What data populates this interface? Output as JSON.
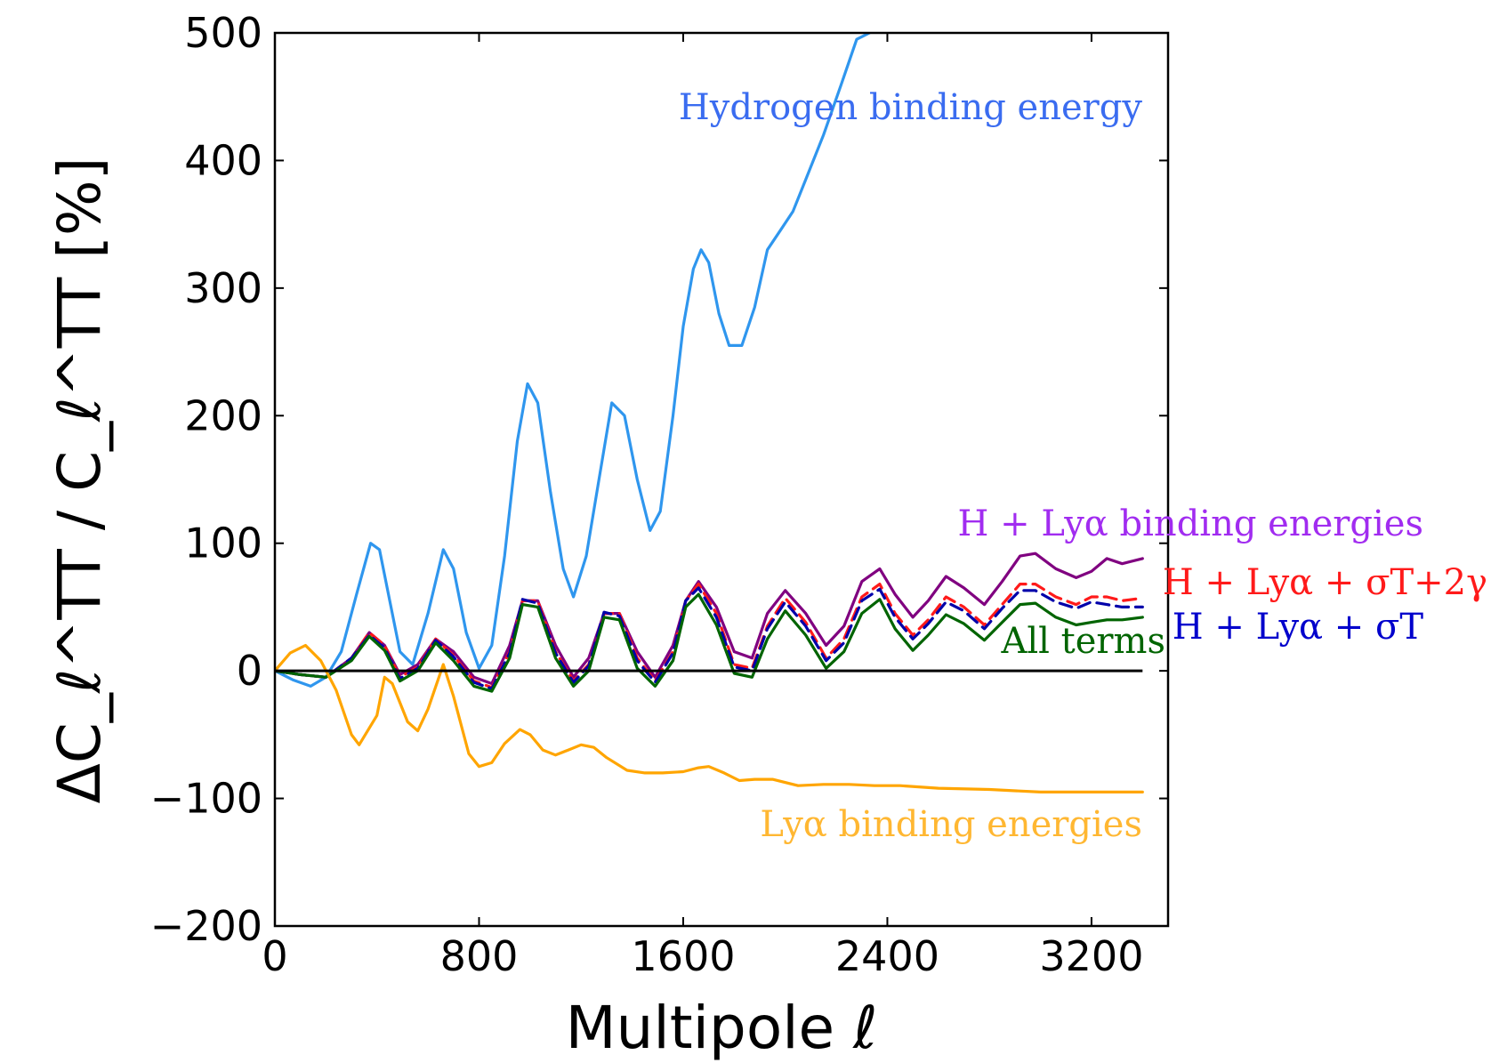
{
  "chart_data": {
    "type": "line",
    "title": "",
    "xlabel": "Multipole ℓ",
    "ylabel": "ΔC_ℓ^TT / C_ℓ^TT [%]",
    "xlim": [
      0,
      3500
    ],
    "ylim": [
      -200,
      500
    ],
    "xticks": [
      0,
      800,
      1600,
      2400,
      3200
    ],
    "xtick_labels": [
      "0",
      "800",
      "1600",
      "2400",
      "3200"
    ],
    "yticks": [
      -200,
      -100,
      0,
      100,
      200,
      300,
      400,
      500
    ],
    "ytick_labels": [
      "−200",
      "−100",
      "0",
      "100",
      "200",
      "300",
      "400",
      "500"
    ],
    "grid": false,
    "series": [
      {
        "name": "Hydrogen binding energy",
        "color": "#2f96ee",
        "dash": "solid",
        "x": [
          0,
          70,
          140,
          200,
          260,
          320,
          375,
          410,
          450,
          490,
          540,
          600,
          660,
          700,
          750,
          800,
          850,
          900,
          950,
          990,
          1030,
          1080,
          1130,
          1170,
          1220,
          1270,
          1320,
          1370,
          1420,
          1470,
          1510,
          1560,
          1600,
          1640,
          1670,
          1700,
          1740,
          1780,
          1830,
          1880,
          1930,
          1980,
          2030,
          2080,
          2150,
          2220,
          2280,
          2330
        ],
        "y": [
          0,
          -7,
          -12,
          -5,
          15,
          60,
          100,
          95,
          55,
          15,
          5,
          45,
          95,
          80,
          30,
          2,
          20,
          90,
          180,
          225,
          210,
          140,
          80,
          58,
          90,
          150,
          210,
          200,
          150,
          110,
          125,
          200,
          270,
          315,
          330,
          320,
          280,
          255,
          255,
          285,
          330,
          345,
          360,
          385,
          420,
          460,
          495,
          500
        ]
      },
      {
        "name": "H + Lyα binding energies",
        "color": "#800080",
        "dash": "solid",
        "x": [
          0,
          100,
          200,
          300,
          370,
          430,
          490,
          560,
          630,
          700,
          780,
          850,
          920,
          970,
          1030,
          1100,
          1170,
          1230,
          1290,
          1350,
          1420,
          1490,
          1560,
          1610,
          1660,
          1730,
          1800,
          1870,
          1930,
          2000,
          2080,
          2160,
          2230,
          2300,
          2370,
          2430,
          2500,
          2560,
          2630,
          2700,
          2780,
          2850,
          2920,
          2980,
          3060,
          3140,
          3200,
          3260,
          3320,
          3400
        ],
        "y": [
          0,
          -3,
          -5,
          10,
          30,
          20,
          -3,
          5,
          25,
          15,
          -5,
          -10,
          20,
          55,
          55,
          20,
          -5,
          10,
          45,
          45,
          15,
          -5,
          20,
          55,
          70,
          50,
          15,
          10,
          45,
          63,
          45,
          20,
          35,
          70,
          80,
          60,
          42,
          55,
          74,
          65,
          52,
          70,
          90,
          92,
          80,
          73,
          78,
          88,
          84,
          88
        ]
      },
      {
        "name": "H + Lyα + σT+2γ",
        "color": "#ff1a1a",
        "dash": "dashed",
        "x": [
          0,
          100,
          200,
          300,
          370,
          430,
          490,
          560,
          630,
          700,
          780,
          850,
          920,
          970,
          1030,
          1100,
          1170,
          1230,
          1290,
          1350,
          1420,
          1490,
          1560,
          1610,
          1660,
          1730,
          1800,
          1870,
          1930,
          2000,
          2080,
          2160,
          2230,
          2300,
          2370,
          2430,
          2500,
          2560,
          2630,
          2700,
          2780,
          2850,
          2920,
          2980,
          3060,
          3140,
          3200,
          3260,
          3320,
          3400
        ],
        "y": [
          0,
          -3,
          -5,
          10,
          30,
          20,
          -5,
          3,
          25,
          12,
          -8,
          -13,
          15,
          55,
          55,
          15,
          -8,
          5,
          45,
          45,
          10,
          -8,
          15,
          55,
          68,
          45,
          5,
          2,
          35,
          57,
          38,
          10,
          25,
          58,
          68,
          45,
          28,
          40,
          58,
          50,
          36,
          52,
          68,
          68,
          58,
          52,
          58,
          58,
          55,
          57
        ]
      },
      {
        "name": "H + Lyα + σT",
        "color": "#0000aa",
        "dash": "dashed",
        "x": [
          0,
          100,
          200,
          300,
          370,
          430,
          490,
          560,
          630,
          700,
          780,
          850,
          920,
          970,
          1030,
          1100,
          1170,
          1230,
          1290,
          1350,
          1420,
          1490,
          1560,
          1610,
          1660,
          1730,
          1800,
          1870,
          1930,
          2000,
          2080,
          2160,
          2230,
          2300,
          2370,
          2430,
          2500,
          2560,
          2630,
          2700,
          2780,
          2850,
          2920,
          2980,
          3060,
          3140,
          3200,
          3260,
          3320,
          3400
        ],
        "y": [
          0,
          -3,
          -5,
          10,
          28,
          18,
          -6,
          2,
          24,
          11,
          -9,
          -14,
          14,
          56,
          53,
          14,
          -9,
          4,
          46,
          43,
          8,
          -9,
          14,
          55,
          65,
          42,
          3,
          0,
          33,
          54,
          35,
          8,
          22,
          55,
          64,
          42,
          25,
          37,
          54,
          47,
          33,
          49,
          63,
          63,
          54,
          49,
          54,
          52,
          50,
          50
        ]
      },
      {
        "name": "All terms",
        "color": "#006400",
        "dash": "solid",
        "x": [
          0,
          100,
          200,
          300,
          370,
          430,
          490,
          560,
          630,
          700,
          780,
          850,
          920,
          970,
          1030,
          1100,
          1170,
          1230,
          1290,
          1350,
          1420,
          1490,
          1560,
          1610,
          1660,
          1730,
          1800,
          1870,
          1930,
          2000,
          2080,
          2160,
          2230,
          2300,
          2370,
          2430,
          2500,
          2560,
          2630,
          2700,
          2780,
          2850,
          2920,
          2980,
          3060,
          3140,
          3200,
          3260,
          3320,
          3400
        ],
        "y": [
          0,
          -3,
          -5,
          8,
          27,
          16,
          -8,
          0,
          22,
          8,
          -12,
          -16,
          10,
          52,
          50,
          10,
          -12,
          0,
          42,
          40,
          2,
          -12,
          8,
          50,
          60,
          36,
          -2,
          -5,
          25,
          47,
          28,
          2,
          15,
          45,
          56,
          33,
          16,
          28,
          44,
          37,
          24,
          38,
          52,
          53,
          42,
          36,
          38,
          40,
          40,
          42
        ]
      },
      {
        "name": "Lyα binding energies",
        "color": "#ffa500",
        "dash": "solid",
        "x": [
          0,
          60,
          120,
          180,
          240,
          300,
          330,
          400,
          430,
          460,
          520,
          560,
          600,
          660,
          700,
          760,
          800,
          850,
          900,
          960,
          1000,
          1050,
          1100,
          1150,
          1200,
          1250,
          1300,
          1380,
          1450,
          1520,
          1600,
          1660,
          1700,
          1760,
          1820,
          1880,
          1950,
          2050,
          2150,
          2250,
          2350,
          2450,
          2600,
          2800,
          3000,
          3200,
          3400
        ],
        "y": [
          0,
          14,
          20,
          8,
          -15,
          -50,
          -58,
          -35,
          -5,
          -10,
          -40,
          -47,
          -30,
          5,
          -20,
          -65,
          -75,
          -72,
          -57,
          -46,
          -50,
          -62,
          -66,
          -62,
          -58,
          -60,
          -68,
          -78,
          -80,
          -80,
          -79,
          -76,
          -75,
          -80,
          -86,
          -85,
          -85,
          -90,
          -89,
          -89,
          -90,
          -90,
          -92,
          -93,
          -95,
          -95,
          -95
        ]
      }
    ],
    "baseline": {
      "y": 0,
      "color": "#000000"
    },
    "annotations": [
      {
        "text": "Hydrogen binding energy",
        "color": "#3a6cf0"
      },
      {
        "text": "H + Lyα binding energies",
        "color": "#a12cf0"
      },
      {
        "text": "H + Lyα + σT+2γ",
        "color": "#ff1a1a"
      },
      {
        "text": "H + Lyα + σT",
        "color": "#0000cc"
      },
      {
        "text": "All terms",
        "color": "#006400"
      },
      {
        "text": "Lyα binding energies",
        "color": "#ffb732"
      }
    ]
  }
}
